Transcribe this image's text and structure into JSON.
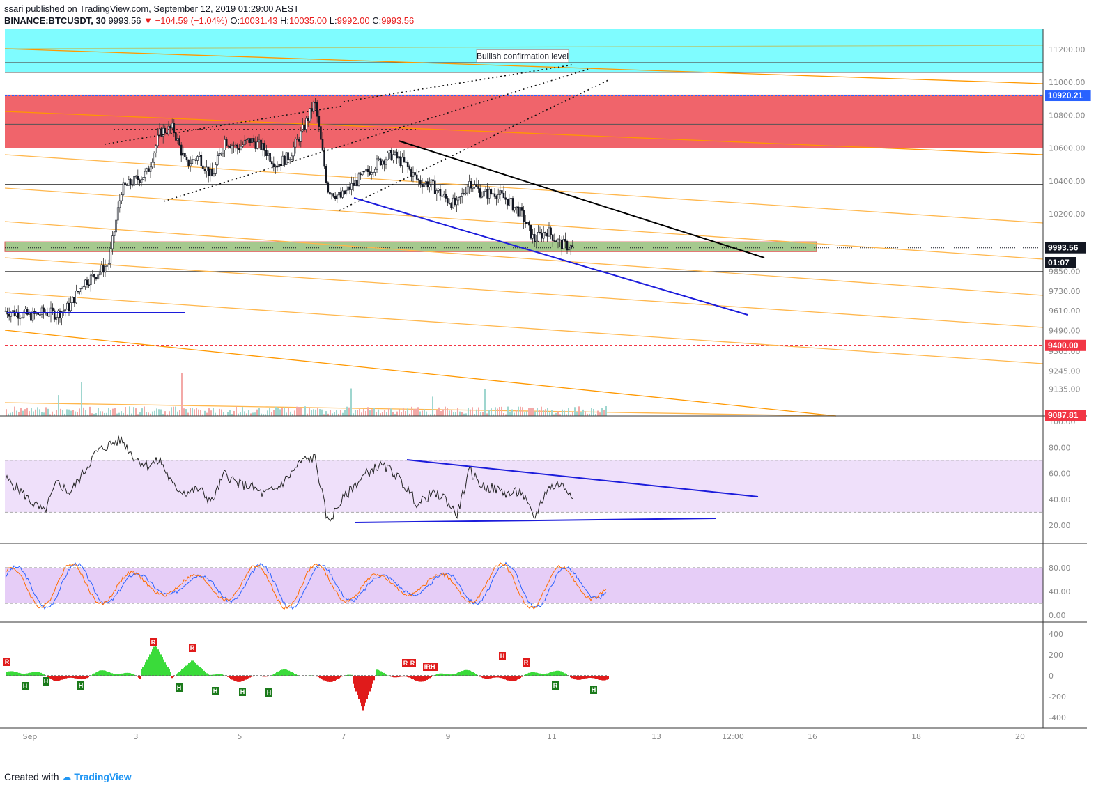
{
  "header": {
    "line1": "ssari published on TradingView.com, September 12, 2019 01:29:00 AEST",
    "symbol": "BINANCE:BTCUSDT, 30",
    "last": "9993.56",
    "change": "▼ −104.59 (−1.04%)",
    "o_label": "O:",
    "o_value": "10031.43",
    "h_label": "H:",
    "h_value": "10035.00",
    "l_label": "L:",
    "l_value": "9992.00",
    "c_label": "C:",
    "c_value": "9993.56"
  },
  "footer": {
    "created_with": "Created with",
    "brand": "TradingView"
  },
  "colors": {
    "up": "#26a69a",
    "down": "#ef5350",
    "resistance_zone": "#f0646b",
    "confirmation_zone": "#7ffcff",
    "support_zone": "#a5c98e",
    "channel": "#ff9800",
    "trend_black": "#000000",
    "trend_blue": "#1c1cdb",
    "rsi_fill": "#efe0fa",
    "stoch_fill": "#e6cdf7"
  },
  "chart_data": [
    {
      "type": "candlestick",
      "name": "price",
      "price_axis": [
        11200,
        11000,
        10800,
        10600,
        10400,
        10200,
        9850,
        9730,
        9610,
        9490,
        9365,
        9245,
        9135
      ],
      "time_axis": [
        "Sep",
        "3",
        "5",
        "7",
        "9",
        "11",
        "13",
        "12:00",
        "16",
        "18",
        "20"
      ],
      "annotation": "Bullish confirmation level",
      "price_badges": [
        {
          "label": "10920.21",
          "price": 10920.21,
          "color": "#2962ff"
        },
        {
          "label": "9993.56",
          "price": 9993.56,
          "color": "#131722"
        },
        {
          "label": "01:07",
          "price": 9960,
          "color": "#131722"
        },
        {
          "label": "9400.00",
          "price": 9400,
          "color": "#f23645"
        },
        {
          "label": "9087.81",
          "price": 9087.81,
          "color": "#f23645"
        }
      ],
      "zones": [
        {
          "name": "confirmation",
          "from": 11060,
          "to": 11330
        },
        {
          "name": "resistance",
          "from": 10600,
          "to": 10925
        },
        {
          "name": "support",
          "from": 9970,
          "to": 10030
        }
      ],
      "horizontal_levels": [
        11120,
        11060,
        10920.21,
        10745,
        10380,
        9993.56,
        9850,
        9400,
        9160
      ],
      "close_path": [
        [
          "Sep 1",
          9610
        ],
        [
          "Sep 1 12:00",
          9580
        ],
        [
          "Sep 1 18:00",
          9600
        ],
        [
          "Sep 2",
          9590
        ],
        [
          "Sep 2 06:00",
          9640
        ],
        [
          "Sep 2 12:00",
          9780
        ],
        [
          "Sep 2 18:00",
          9830
        ],
        [
          "Sep 3",
          9900
        ],
        [
          "Sep 3 06:00",
          10350
        ],
        [
          "Sep 3 12:00",
          10400
        ],
        [
          "Sep 3 18:00",
          10450
        ],
        [
          "Sep 4",
          10700
        ],
        [
          "Sep 4 06:00",
          10720
        ],
        [
          "Sep 4 12:00",
          10500
        ],
        [
          "Sep 4 18:00",
          10550
        ],
        [
          "Sep 5",
          10420
        ],
        [
          "Sep 5 06:00",
          10650
        ],
        [
          "Sep 5 12:00",
          10600
        ],
        [
          "Sep 5 18:00",
          10650
        ],
        [
          "Sep 6",
          10600
        ],
        [
          "Sep 6 06:00",
          10500
        ],
        [
          "Sep 6 12:00",
          10550
        ],
        [
          "Sep 6 18:00",
          10700
        ],
        [
          "Sep 7",
          10880
        ],
        [
          "Sep 7 06:00",
          10350
        ],
        [
          "Sep 7 12:00",
          10300
        ],
        [
          "Sep 7 18:00",
          10380
        ],
        [
          "Sep 8",
          10450
        ],
        [
          "Sep 8 06:00",
          10520
        ],
        [
          "Sep 8 12:00",
          10560
        ],
        [
          "Sep 8 18:00",
          10500
        ],
        [
          "Sep 9",
          10400
        ],
        [
          "Sep 9 06:00",
          10380
        ],
        [
          "Sep 9 12:00",
          10300
        ],
        [
          "Sep 9 18:00",
          10250
        ],
        [
          "Sep 10",
          10400
        ],
        [
          "Sep 10 06:00",
          10320
        ],
        [
          "Sep 10 12:00",
          10330
        ],
        [
          "Sep 10 18:00",
          10280
        ],
        [
          "Sep 11",
          10200
        ],
        [
          "Sep 11 06:00",
          10040
        ],
        [
          "Sep 11 12:00",
          10100
        ],
        [
          "Sep 11 18:00",
          10020
        ],
        [
          "Sep 12",
          9993.56
        ]
      ]
    },
    {
      "type": "line",
      "name": "rsi",
      "y_axis": [
        100,
        80,
        60,
        40,
        20
      ],
      "band": [
        30,
        70
      ],
      "values": [
        [
          "Sep 1",
          56
        ],
        [
          "Sep 1 06:00",
          48
        ],
        [
          "Sep 1 12:00",
          38
        ],
        [
          "Sep 1 18:00",
          30
        ],
        [
          "Sep 2",
          53
        ],
        [
          "Sep 2 06:00",
          45
        ],
        [
          "Sep 2 12:00",
          60
        ],
        [
          "Sep 2 18:00",
          76
        ],
        [
          "Sep 3",
          82
        ],
        [
          "Sep 3 06:00",
          86
        ],
        [
          "Sep 3 12:00",
          72
        ],
        [
          "Sep 3 18:00",
          66
        ],
        [
          "Sep 4",
          70
        ],
        [
          "Sep 4 06:00",
          50
        ],
        [
          "Sep 4 12:00",
          45
        ],
        [
          "Sep 4 18:00",
          48
        ],
        [
          "Sep 5",
          38
        ],
        [
          "Sep 5 06:00",
          60
        ],
        [
          "Sep 5 12:00",
          52
        ],
        [
          "Sep 5 18:00",
          50
        ],
        [
          "Sep 6",
          44
        ],
        [
          "Sep 6 06:00",
          48
        ],
        [
          "Sep 6 12:00",
          58
        ],
        [
          "Sep 6 18:00",
          70
        ],
        [
          "Sep 7",
          72
        ],
        [
          "Sep 7 06:00",
          22
        ],
        [
          "Sep 7 12:00",
          38
        ],
        [
          "Sep 7 18:00",
          50
        ],
        [
          "Sep 8",
          60
        ],
        [
          "Sep 8 06:00",
          66
        ],
        [
          "Sep 8 12:00",
          62
        ],
        [
          "Sep 8 18:00",
          50
        ],
        [
          "Sep 9",
          36
        ],
        [
          "Sep 9 06:00",
          44
        ],
        [
          "Sep 9 12:00",
          42
        ],
        [
          "Sep 9 18:00",
          28
        ],
        [
          "Sep 10",
          62
        ],
        [
          "Sep 10 06:00",
          50
        ],
        [
          "Sep 10 12:00",
          48
        ],
        [
          "Sep 10 18:00",
          44
        ],
        [
          "Sep 11",
          46
        ],
        [
          "Sep 11 06:00",
          25
        ],
        [
          "Sep 11 12:00",
          48
        ],
        [
          "Sep 11 18:00",
          52
        ],
        [
          "Sep 12",
          44
        ]
      ]
    },
    {
      "type": "line",
      "name": "stoch_rsi",
      "y_axis": [
        80,
        40,
        0
      ],
      "band": [
        20,
        80
      ],
      "series": [
        {
          "color": "#2962ff"
        },
        {
          "color": "#ff6d00"
        }
      ]
    },
    {
      "type": "area",
      "name": "divergence_histogram",
      "y_axis": [
        400,
        200,
        0,
        -200,
        -400
      ],
      "markers": [
        "R",
        "H",
        "H",
        "R",
        "R",
        "H",
        "H",
        "R",
        "R",
        "H",
        "H",
        "R",
        "R",
        "RH",
        "H",
        "R",
        "H",
        "H"
      ]
    }
  ]
}
